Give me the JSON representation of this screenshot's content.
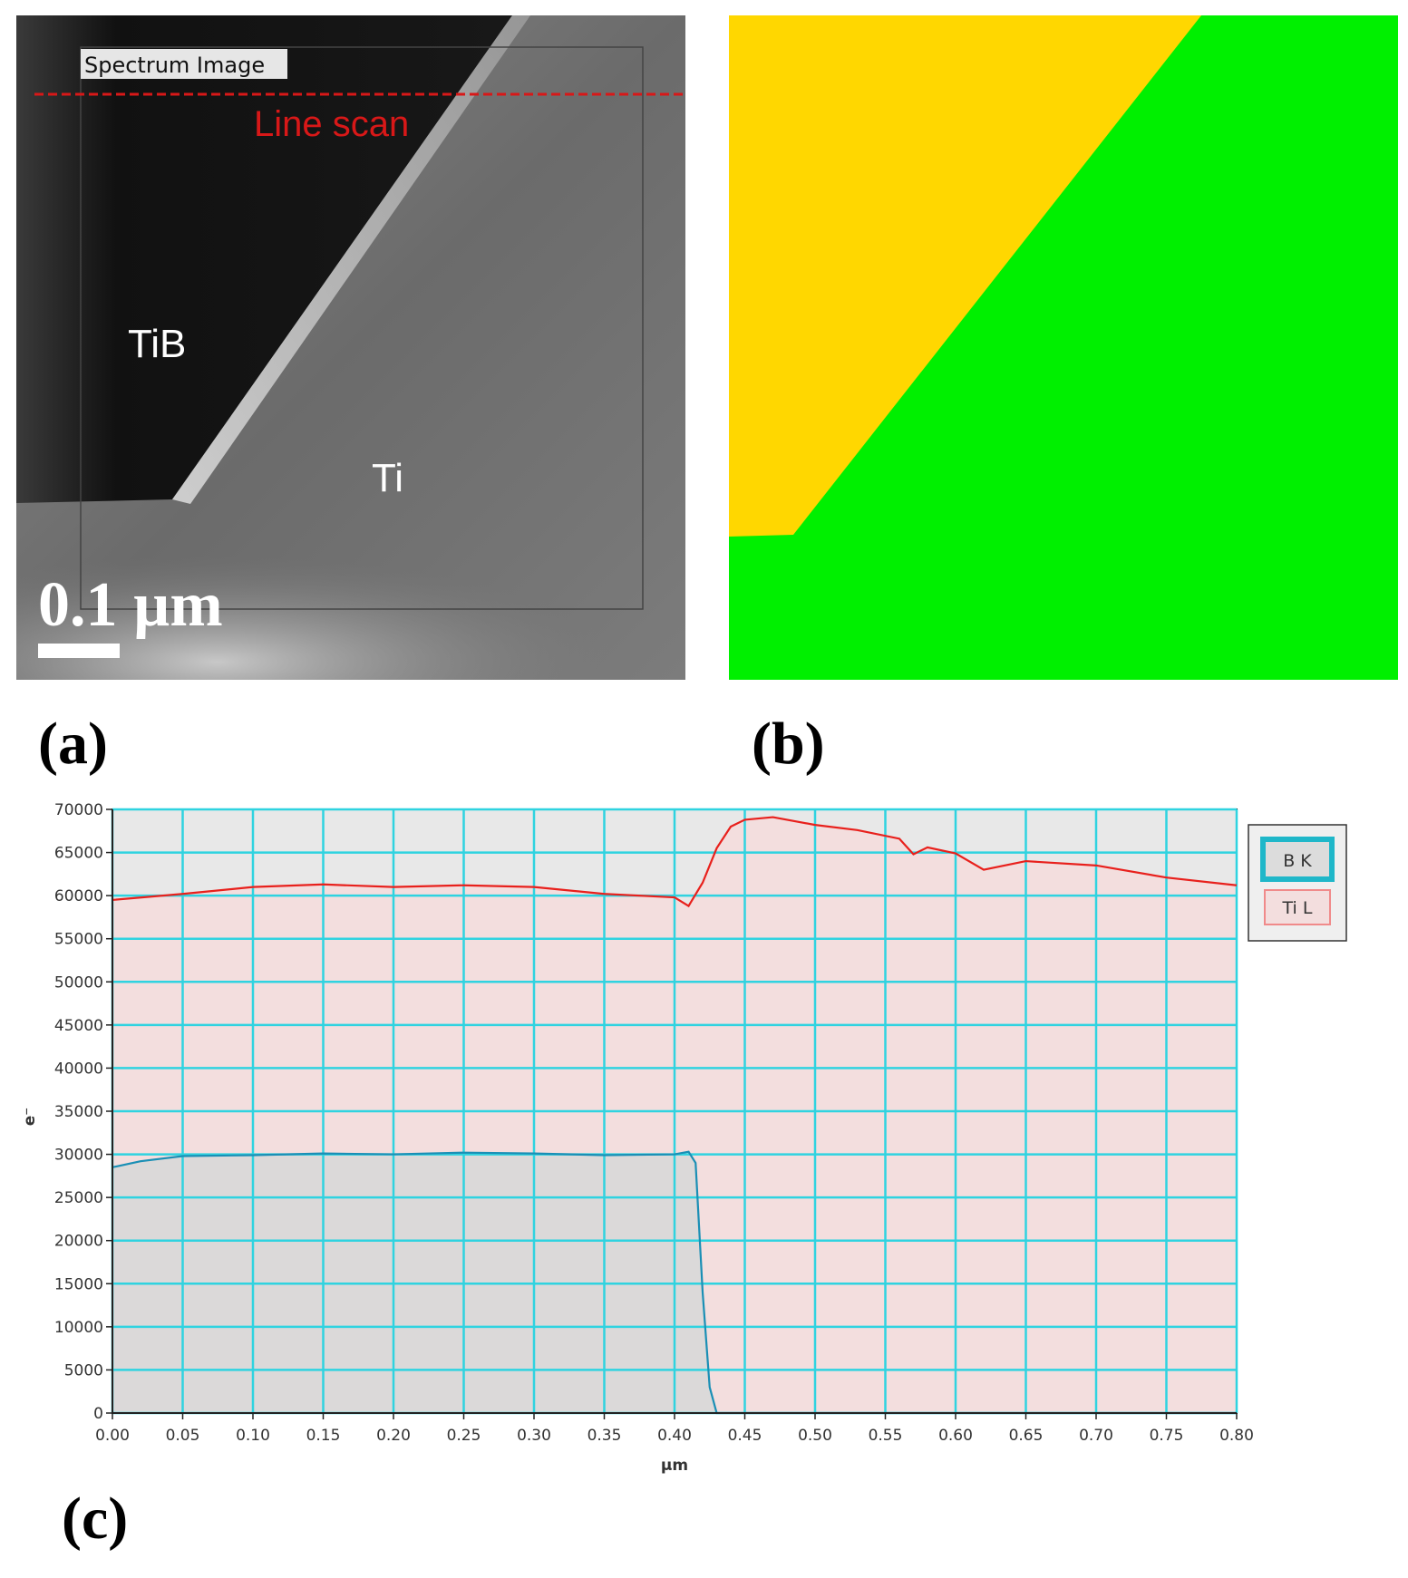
{
  "panel_a": {
    "tag": "(a)",
    "spectrum_label": "Spectrum Image",
    "line_scan_label": "Line scan",
    "tib_label": "TiB",
    "ti_label": "Ti",
    "scale_label": "0.1 µm",
    "line_color": "#d81818"
  },
  "panel_b": {
    "tag": "(b)",
    "colors": {
      "TiB": "#ffd700",
      "Ti": "#00f000"
    }
  },
  "panel_c": {
    "tag": "(c)"
  },
  "chart_data": {
    "type": "area",
    "xlabel": "µm",
    "ylabel": "e⁻",
    "xlim": [
      0,
      0.8
    ],
    "ylim": [
      0,
      70000
    ],
    "xticks": [
      "0.00",
      "0.05",
      "0.10",
      "0.15",
      "0.20",
      "0.25",
      "0.30",
      "0.35",
      "0.40",
      "0.45",
      "0.50",
      "0.55",
      "0.60",
      "0.65",
      "0.70",
      "0.75",
      "0.80"
    ],
    "yticks": [
      "0",
      "5000",
      "10000",
      "15000",
      "20000",
      "25000",
      "30000",
      "35000",
      "40000",
      "45000",
      "50000",
      "55000",
      "60000",
      "65000",
      "70000"
    ],
    "grid": true,
    "legend_position": "right-top",
    "series": [
      {
        "name": "Ti L",
        "line_color": "#e8201c",
        "fill_color": "#f3dede",
        "x": [
          0,
          0.05,
          0.1,
          0.15,
          0.2,
          0.25,
          0.3,
          0.35,
          0.4,
          0.41,
          0.42,
          0.43,
          0.44,
          0.45,
          0.47,
          0.5,
          0.53,
          0.56,
          0.57,
          0.58,
          0.6,
          0.62,
          0.65,
          0.7,
          0.75,
          0.8
        ],
        "y": [
          59500,
          60200,
          61000,
          61300,
          61000,
          61200,
          61000,
          60200,
          59800,
          58800,
          61500,
          65500,
          68000,
          68800,
          69100,
          68200,
          67600,
          66600,
          64800,
          65600,
          64900,
          63000,
          64000,
          63500,
          62100,
          61200
        ]
      },
      {
        "name": "B K",
        "line_color": "#1a8fb5",
        "fill_color": "#dbd9d9",
        "x": [
          0,
          0.02,
          0.05,
          0.1,
          0.15,
          0.2,
          0.25,
          0.3,
          0.35,
          0.4,
          0.41,
          0.415,
          0.42,
          0.425,
          0.43,
          0.8
        ],
        "y": [
          28500,
          29200,
          29800,
          29900,
          30100,
          30000,
          30200,
          30100,
          29900,
          30000,
          30300,
          29000,
          14000,
          3000,
          0,
          0
        ]
      }
    ]
  }
}
